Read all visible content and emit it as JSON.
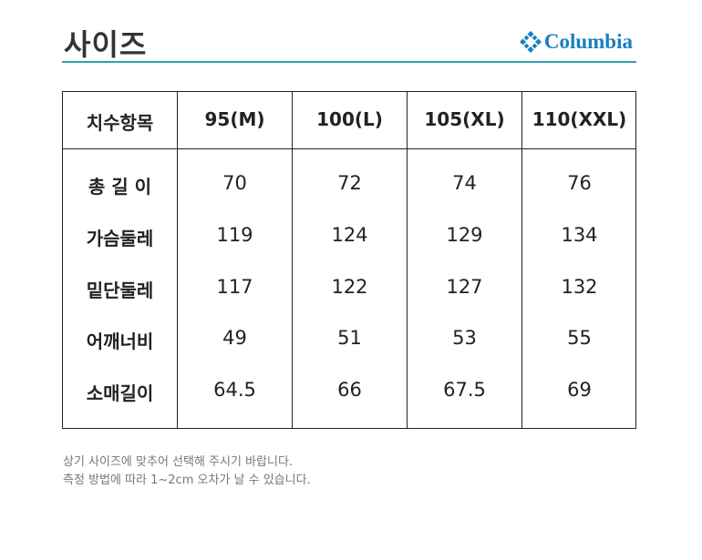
{
  "title": "사이즈",
  "brand": {
    "name": "Columbia",
    "icon": "columbia-diamond-logo",
    "color": "#1a7fc1"
  },
  "accent_color": "#2aa4b4",
  "table": {
    "headers": [
      "치수항목",
      "95(M)",
      "100(L)",
      "105(XL)",
      "110(XXL)"
    ],
    "rows": [
      {
        "label": "총 길 이",
        "values": [
          "70",
          "72",
          "74",
          "76"
        ]
      },
      {
        "label": "가슴둘레",
        "values": [
          "119",
          "124",
          "129",
          "134"
        ]
      },
      {
        "label": "밑단둘레",
        "values": [
          "117",
          "122",
          "127",
          "132"
        ]
      },
      {
        "label": "어깨너비",
        "values": [
          "49",
          "51",
          "53",
          "55"
        ]
      },
      {
        "label": "소매길이",
        "values": [
          "64.5",
          "66",
          "67.5",
          "69"
        ]
      }
    ]
  },
  "notes": [
    "상기 사이즈에 맞추어 선택해 주시기 바랍니다.",
    "측정 방법에 따라 1~2cm 오차가 날 수 있습니다."
  ]
}
